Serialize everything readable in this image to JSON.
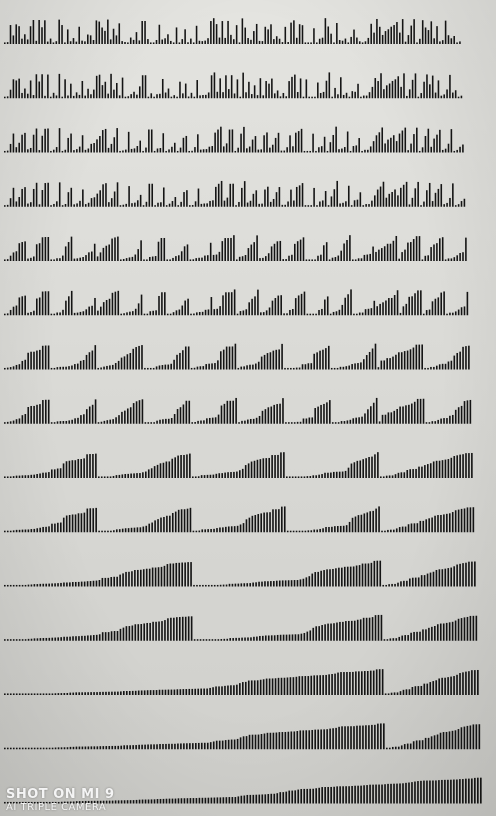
{
  "photo": {
    "subject": "merge sort visualization bars",
    "watermark": {
      "line1": "SHOT ON MI 9",
      "line2": "AI TRIPLE CAMERA"
    }
  },
  "visual": {
    "bar_color": "#141414",
    "paper_color": "#dcdcd8",
    "row_count": 15,
    "bar_count": 160,
    "max_height": 26,
    "sorted_runs_by_row": [
      1,
      2,
      4,
      4,
      8,
      8,
      16,
      16,
      32,
      32,
      64,
      64,
      128,
      128,
      160
    ]
  }
}
